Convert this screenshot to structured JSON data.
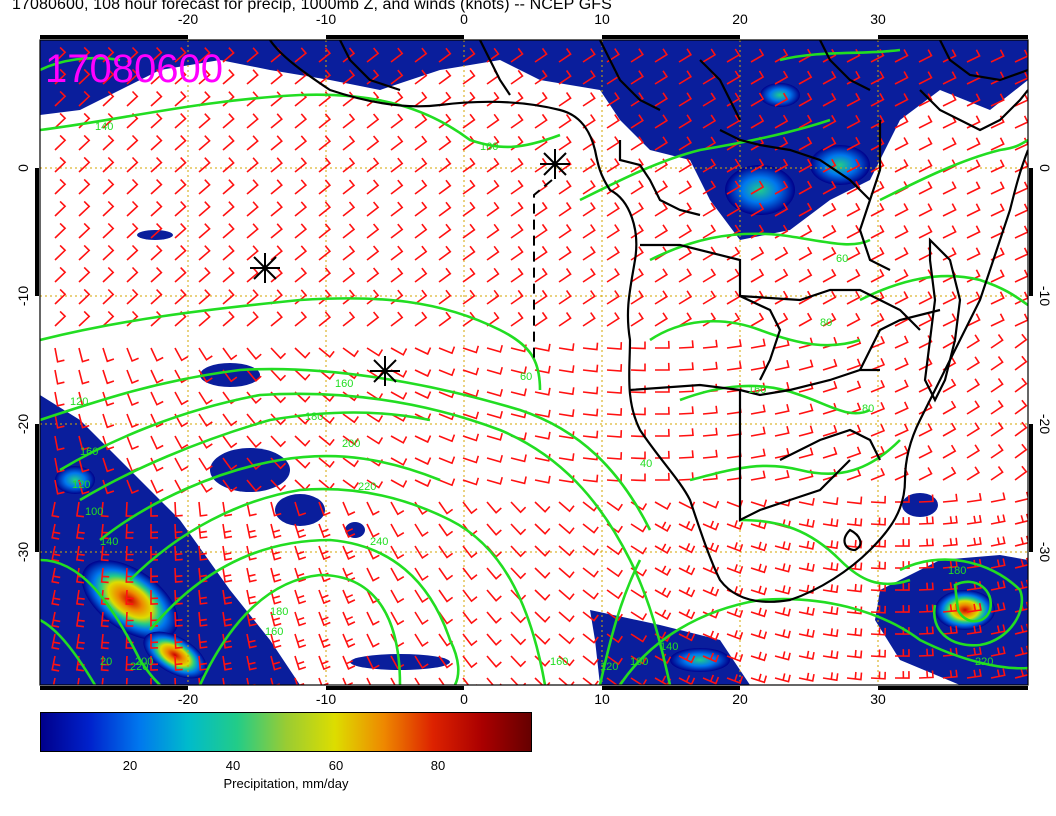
{
  "title": "17080600, 108 hour forecast for precip, 1000mb Z, and winds (knots) -- NCEP GFS",
  "stamp": "17080600",
  "stamp_color": "#ff00ff",
  "axes": {
    "lon_ticks": [
      -20,
      -10,
      0,
      10,
      20,
      30
    ],
    "lat_ticks": [
      0,
      -10,
      -20,
      -30
    ],
    "lon_range": [
      -30,
      40
    ],
    "lat_range": [
      -40,
      10
    ]
  },
  "contour_labels": [
    "160",
    "140",
    "120",
    "160",
    "160",
    "180",
    "200",
    "220",
    "240",
    "100",
    "120",
    "140",
    "160",
    "180",
    "200",
    "220",
    "160",
    "60",
    "80",
    "40",
    "60",
    "100",
    "120",
    "140",
    "160",
    "80",
    "180",
    "220",
    "20"
  ],
  "colors": {
    "contour": "#22dd22",
    "wind_barb": "#ff1111",
    "grid": "#d4a500",
    "coast": "#000000"
  },
  "colorbar": {
    "title": "Precipitation, mm/day",
    "ticks": [
      "20",
      "40",
      "60",
      "80"
    ],
    "tick_values": [
      20,
      40,
      60,
      80
    ],
    "range": [
      0,
      100
    ],
    "colors": [
      "#00008b",
      "#0022cc",
      "#0077ee",
      "#00bbcc",
      "#22cc88",
      "#99cc33",
      "#dddd00",
      "#ee8800",
      "#dd2200",
      "#aa0000",
      "#660000"
    ]
  }
}
